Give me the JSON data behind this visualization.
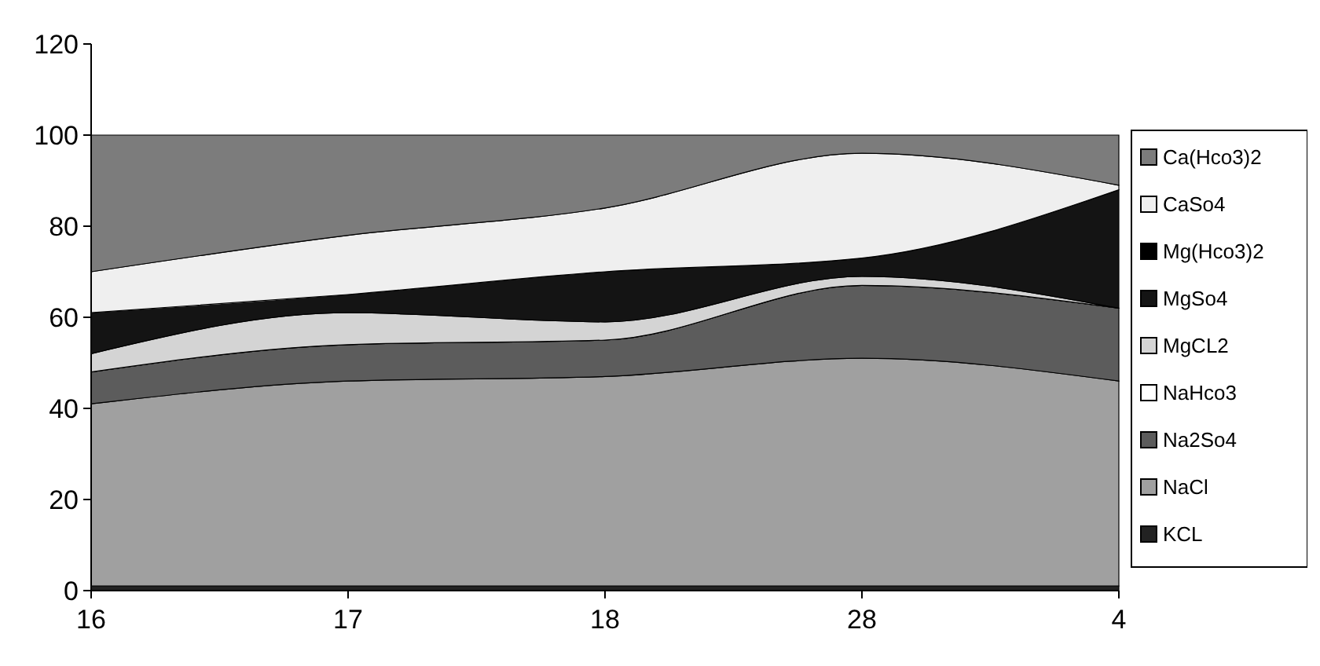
{
  "chart_data": {
    "type": "area",
    "stacked": true,
    "categories": [
      "16",
      "17",
      "18",
      "28",
      "4"
    ],
    "ylim": [
      0,
      120
    ],
    "yticks": [
      0,
      20,
      40,
      60,
      80,
      100,
      120
    ],
    "grid": false,
    "legend": "right",
    "series": [
      {
        "name": "KCL",
        "color": "#222222",
        "values": [
          1,
          1,
          1,
          1,
          1
        ]
      },
      {
        "name": "NaCl",
        "color": "#a0a0a0",
        "values": [
          40,
          45,
          46,
          50,
          45
        ]
      },
      {
        "name": "Na2So4",
        "color": "#5c5c5c",
        "values": [
          7,
          8,
          8,
          16,
          16
        ]
      },
      {
        "name": "NaHco3",
        "color": "#ffffff",
        "values": [
          0,
          0,
          0,
          0,
          0
        ]
      },
      {
        "name": "MgCL2",
        "color": "#d4d4d4",
        "values": [
          4,
          7,
          4,
          2,
          0
        ]
      },
      {
        "name": "MgSo4",
        "color": "#141414",
        "values": [
          9,
          4,
          11,
          4,
          26
        ]
      },
      {
        "name": "Mg(Hco3)2",
        "color": "#000000",
        "values": [
          0,
          0,
          0,
          0,
          0
        ]
      },
      {
        "name": "CaSo4",
        "color": "#efefef",
        "values": [
          9,
          13,
          14,
          23,
          1
        ]
      },
      {
        "name": "Ca(Hco3)2",
        "color": "#7c7c7c",
        "values": [
          30,
          22,
          16,
          4,
          11
        ]
      }
    ]
  }
}
